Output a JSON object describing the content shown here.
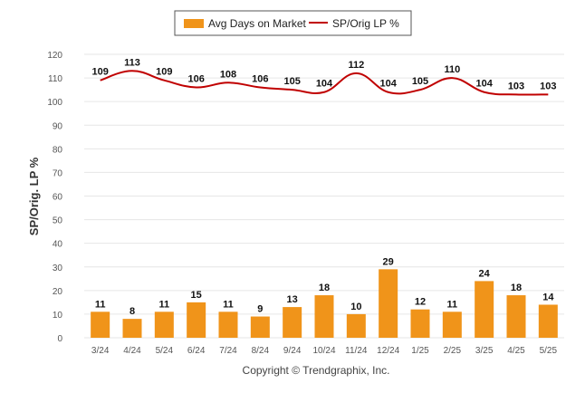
{
  "chart_data": {
    "type": "bar",
    "categories": [
      "3/24",
      "4/24",
      "5/24",
      "6/24",
      "7/24",
      "8/24",
      "9/24",
      "10/24",
      "11/24",
      "12/24",
      "1/25",
      "2/25",
      "3/25",
      "4/25",
      "5/25"
    ],
    "series": [
      {
        "name": "Avg Days on Market",
        "type": "bar",
        "color": "#f0941a",
        "values": [
          11,
          8,
          11,
          15,
          11,
          9,
          13,
          18,
          10,
          29,
          12,
          11,
          24,
          18,
          14
        ]
      },
      {
        "name": "SP/Orig LP %",
        "type": "line",
        "color": "#c00000",
        "values": [
          109,
          113,
          109,
          106,
          108,
          106,
          105,
          104,
          112,
          104,
          105,
          110,
          104,
          103,
          103
        ]
      }
    ],
    "ylabel": "SP/Orig. LP %",
    "ylim": [
      0,
      120
    ],
    "yticks": [
      0,
      10,
      20,
      30,
      40,
      50,
      60,
      70,
      80,
      90,
      100,
      110,
      120
    ],
    "grid": true,
    "legend_position": "top"
  },
  "footer": {
    "credit": "Copyright © Trendgraphix, Inc."
  }
}
